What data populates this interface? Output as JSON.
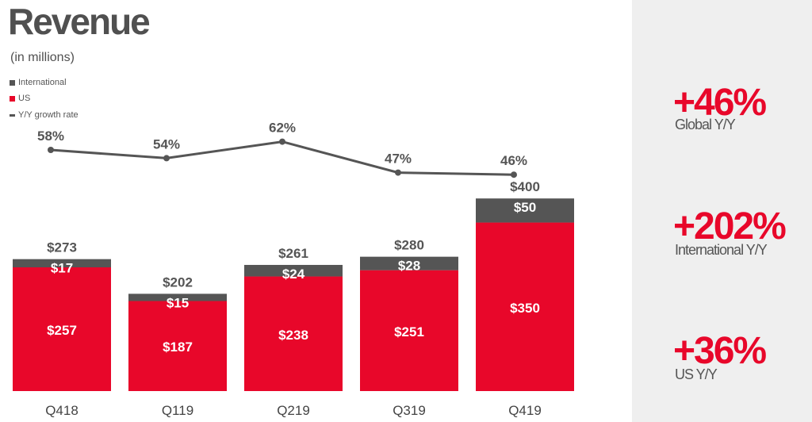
{
  "title": "Revenue",
  "subtitle": "(in millions)",
  "legend": [
    {
      "label": "International",
      "color": "#555555",
      "shape": "square"
    },
    {
      "label": "US",
      "color": "#e8072a",
      "shape": "square"
    },
    {
      "label": "Y/Y growth rate",
      "color": "#555555",
      "shape": "line"
    }
  ],
  "colors": {
    "us": "#e8072a",
    "international": "#555555",
    "line": "#555555",
    "accent": "#e8072a",
    "panel_bg": "#efefef"
  },
  "chart_data": {
    "type": "bar",
    "stacked": true,
    "categories": [
      "Q418",
      "Q119",
      "Q219",
      "Q319",
      "Q419"
    ],
    "series": [
      {
        "name": "US",
        "values": [
          257,
          187,
          238,
          251,
          350
        ],
        "labels": [
          "$257",
          "$187",
          "$238",
          "$251",
          "$350"
        ]
      },
      {
        "name": "International",
        "values": [
          17,
          15,
          24,
          28,
          50
        ],
        "labels": [
          "$17",
          "$15",
          "$24",
          "$28",
          "$50"
        ]
      }
    ],
    "totals": [
      273,
      202,
      261,
      280,
      400
    ],
    "total_labels": [
      "$273",
      "$202",
      "$261",
      "$280",
      "$400"
    ],
    "line_series": {
      "name": "Y/Y growth rate",
      "values": [
        58,
        54,
        62,
        47,
        46
      ],
      "labels": [
        "58%",
        "54%",
        "62%",
        "47%",
        "46%"
      ]
    },
    "ylim": [
      0,
      420
    ],
    "grid": false,
    "legend_position": "top-left"
  },
  "stats": [
    {
      "value": "+46%",
      "label": "Global Y/Y"
    },
    {
      "value": "+202%",
      "label": "International Y/Y"
    },
    {
      "value": "+36%",
      "label": "US Y/Y"
    }
  ]
}
